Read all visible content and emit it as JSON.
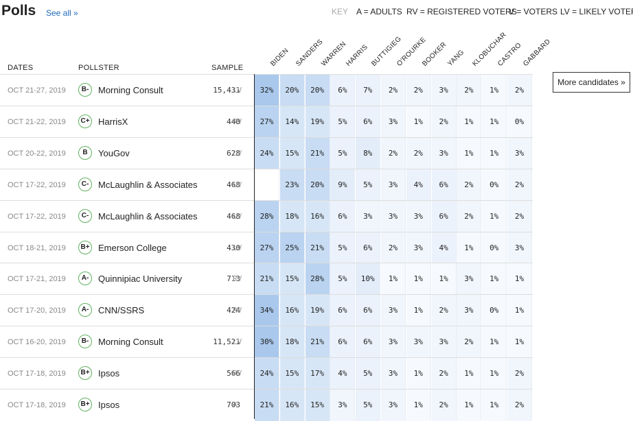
{
  "header": {
    "title": "Polls",
    "see_all": "See all »"
  },
  "key": [
    "KEY",
    "A = ADULTS",
    "RV = REGISTERED VOTERS",
    "V = VOTERS",
    "LV = LIKELY VOTERS"
  ],
  "columns": {
    "dates": "DATES",
    "pollster": "POLLSTER",
    "sample": "SAMPLE"
  },
  "candidates": [
    "BIDEN",
    "SANDERS",
    "WARREN",
    "HARRIS",
    "BUTTIGIEG",
    "O'ROURKE",
    "BOOKER",
    "YANG",
    "KLOBUCHAR",
    "CASTRO",
    "GABBARD"
  ],
  "more_button": "More candidates »",
  "rows": [
    {
      "date": "OCT 21-27, 2019",
      "grade": "B-",
      "pollster": "Morning Consult",
      "sample": "15,431",
      "type": "LV",
      "values": [
        "32%",
        "20%",
        "20%",
        "6%",
        "7%",
        "2%",
        "2%",
        "3%",
        "2%",
        "1%",
        "2%"
      ]
    },
    {
      "date": "OCT 21-22, 2019",
      "grade": "C+",
      "pollster": "HarrisX",
      "sample": "440",
      "type": "RV",
      "values": [
        "27%",
        "14%",
        "19%",
        "5%",
        "6%",
        "3%",
        "1%",
        "2%",
        "1%",
        "1%",
        "0%"
      ]
    },
    {
      "date": "OCT 20-22, 2019",
      "grade": "B",
      "pollster": "YouGov",
      "sample": "628",
      "type": "LV",
      "values": [
        "24%",
        "15%",
        "21%",
        "5%",
        "8%",
        "2%",
        "2%",
        "3%",
        "1%",
        "1%",
        "3%"
      ]
    },
    {
      "date": "OCT 17-22, 2019",
      "grade": "C-",
      "pollster": "McLaughlin & Associates",
      "sample": "468",
      "type": "LV",
      "values": [
        "",
        "23%",
        "20%",
        "9%",
        "5%",
        "3%",
        "4%",
        "6%",
        "2%",
        "0%",
        "2%"
      ]
    },
    {
      "date": "OCT 17-22, 2019",
      "grade": "C-",
      "pollster": "McLaughlin & Associates",
      "sample": "468",
      "type": "LV",
      "values": [
        "28%",
        "18%",
        "16%",
        "6%",
        "3%",
        "3%",
        "3%",
        "6%",
        "2%",
        "1%",
        "2%"
      ]
    },
    {
      "date": "OCT 18-21, 2019",
      "grade": "B+",
      "pollster": "Emerson College",
      "sample": "430",
      "type": "LV",
      "values": [
        "27%",
        "25%",
        "21%",
        "5%",
        "6%",
        "2%",
        "3%",
        "4%",
        "1%",
        "0%",
        "3%"
      ]
    },
    {
      "date": "OCT 17-21, 2019",
      "grade": "A-",
      "pollster": "Quinnipiac University",
      "sample": "713",
      "type": "RV",
      "values": [
        "21%",
        "15%",
        "28%",
        "5%",
        "10%",
        "1%",
        "1%",
        "1%",
        "3%",
        "1%",
        "1%"
      ]
    },
    {
      "date": "OCT 17-20, 2019",
      "grade": "A-",
      "pollster": "CNN/SSRS",
      "sample": "424",
      "type": "RV",
      "values": [
        "34%",
        "16%",
        "19%",
        "6%",
        "6%",
        "3%",
        "1%",
        "2%",
        "3%",
        "0%",
        "1%"
      ]
    },
    {
      "date": "OCT 16-20, 2019",
      "grade": "B-",
      "pollster": "Morning Consult",
      "sample": "11,521",
      "type": "LV",
      "values": [
        "30%",
        "18%",
        "21%",
        "6%",
        "6%",
        "3%",
        "3%",
        "3%",
        "2%",
        "1%",
        "1%"
      ]
    },
    {
      "date": "OCT 17-18, 2019",
      "grade": "B+",
      "pollster": "Ipsos",
      "sample": "566",
      "type": "RV",
      "values": [
        "24%",
        "15%",
        "17%",
        "4%",
        "5%",
        "3%",
        "1%",
        "2%",
        "1%",
        "1%",
        "2%"
      ]
    },
    {
      "date": "OCT 17-18, 2019",
      "grade": "B+",
      "pollster": "Ipsos",
      "sample": "703",
      "type": "A",
      "values": [
        "21%",
        "16%",
        "15%",
        "3%",
        "5%",
        "3%",
        "1%",
        "2%",
        "1%",
        "1%",
        "2%"
      ]
    }
  ]
}
